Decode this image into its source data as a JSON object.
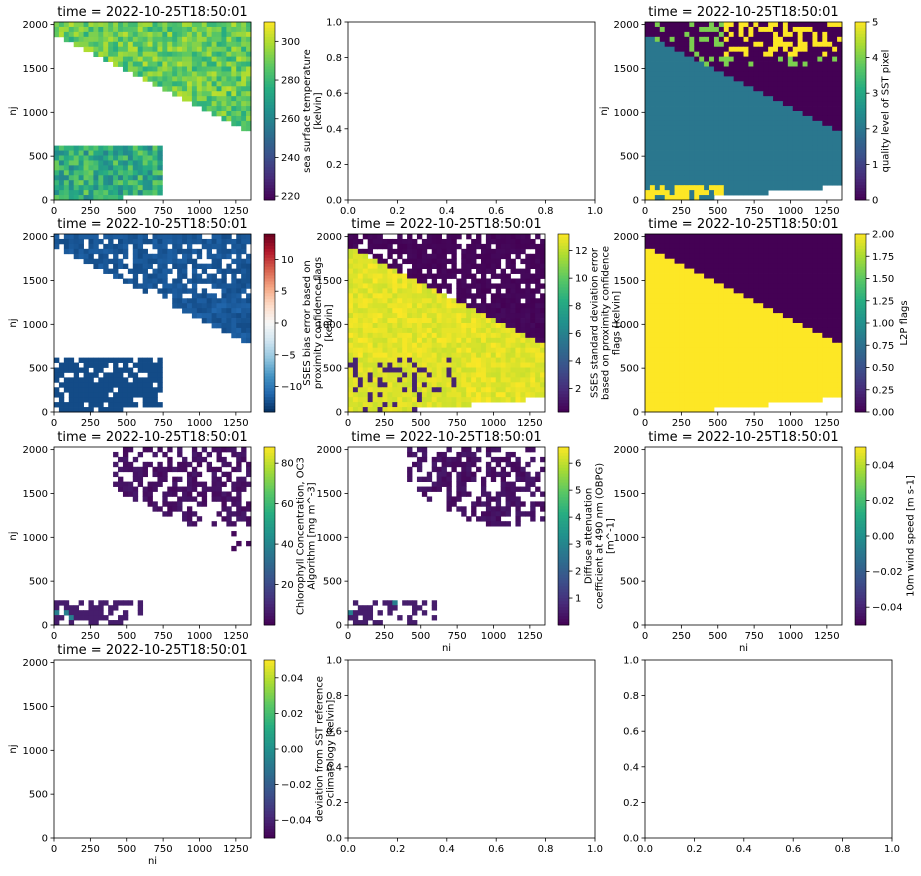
{
  "figure": {
    "background": "#ffffff"
  },
  "chart_data": [
    {
      "type": "heatmap",
      "title": "time = 2022-10-25T18:50:01",
      "xlabel": "",
      "ylabel": "nj",
      "xlim": [
        0,
        1354
      ],
      "ylim": [
        0,
        2030
      ],
      "xticks": [
        0,
        250,
        500,
        750,
        1000,
        1250
      ],
      "yticks": [
        0,
        500,
        1000,
        1500,
        2000
      ],
      "colormap": "viridis",
      "colorbar": {
        "label": [
          "sea surface temperature",
          "[kelvin]"
        ],
        "min": 218,
        "max": 310,
        "ticks": [
          220,
          240,
          260,
          280,
          300
        ]
      }
    },
    {
      "type": "empty",
      "title": "",
      "xlabel": "",
      "ylabel": "",
      "xlim": [
        0,
        1
      ],
      "ylim": [
        0,
        1
      ],
      "xticks": [
        0.0,
        0.2,
        0.4,
        0.6,
        0.8,
        1.0
      ],
      "yticks": [
        0.0,
        0.2,
        0.4,
        0.6,
        0.8,
        1.0
      ]
    },
    {
      "type": "heatmap",
      "title": "time = 2022-10-25T18:50:01",
      "xlabel": "",
      "ylabel": "nj",
      "xlim": [
        0,
        1354
      ],
      "ylim": [
        0,
        2030
      ],
      "xticks": [
        0,
        250,
        500,
        750,
        1000,
        1250
      ],
      "yticks": [
        0,
        500,
        1000,
        1500,
        2000
      ],
      "colormap": "viridis",
      "colorbar": {
        "label": [
          "quality level of SST pixel"
        ],
        "min": 0,
        "max": 5,
        "ticks": [
          0,
          1,
          2,
          3,
          4,
          5
        ]
      }
    },
    {
      "type": "heatmap",
      "title": "time = 2022-10-25T18:50:01",
      "xlabel": "",
      "ylabel": "nj",
      "xlim": [
        0,
        1354
      ],
      "ylim": [
        0,
        2030
      ],
      "xticks": [
        0,
        250,
        500,
        750,
        1000,
        1250
      ],
      "yticks": [
        0,
        500,
        1000,
        1500,
        2000
      ],
      "colormap": "RdBu_r",
      "colorbar": {
        "label": [
          "SSES bias error based on",
          "proximity confidence flags",
          "[kelvin]"
        ],
        "min": -14,
        "max": 14,
        "ticks": [
          -10,
          -5,
          0,
          5,
          10
        ]
      }
    },
    {
      "type": "heatmap",
      "title": "time = 2022-10-25T18:50:01",
      "xlabel": "",
      "ylabel": "",
      "xlim": [
        0,
        1354
      ],
      "ylim": [
        0,
        2030
      ],
      "xticks": [
        0,
        250,
        500,
        750,
        1000,
        1250
      ],
      "yticks": [
        0,
        500,
        1000,
        1500,
        2000
      ],
      "colormap": "viridis",
      "colorbar": {
        "label": [
          "SSES standard deviation error",
          "based on proximity confidence",
          "flags [kelvin]"
        ],
        "min": 0.3,
        "max": 13.2,
        "ticks": [
          2,
          4,
          6,
          8,
          10,
          12
        ]
      }
    },
    {
      "type": "heatmap",
      "title": "time = 2022-10-25T18:50:01",
      "xlabel": "",
      "ylabel": "",
      "xlim": [
        0,
        1354
      ],
      "ylim": [
        0,
        2030
      ],
      "xticks": [
        0,
        250,
        500,
        750,
        1000,
        1250
      ],
      "yticks": [
        0,
        500,
        1000,
        1500,
        2000
      ],
      "colormap": "viridis",
      "colorbar": {
        "label": [
          "L2P flags"
        ],
        "min": 0,
        "max": 2,
        "ticks": [
          0.0,
          0.25,
          0.5,
          0.75,
          1.0,
          1.25,
          1.5,
          1.75,
          2.0
        ]
      }
    },
    {
      "type": "heatmap",
      "title": "time = 2022-10-25T18:50:01",
      "xlabel": "",
      "ylabel": "nj",
      "xlim": [
        0,
        1354
      ],
      "ylim": [
        0,
        2030
      ],
      "xticks": [
        0,
        250,
        500,
        750,
        1000,
        1250
      ],
      "yticks": [
        0,
        500,
        1000,
        1500,
        2000
      ],
      "colormap": "viridis",
      "colorbar": {
        "label": [
          "Chlorophyll Concentration, OC3",
          "Algorithm [mg m^-3]"
        ],
        "min": 0,
        "max": 88,
        "ticks": [
          20,
          40,
          60,
          80
        ]
      }
    },
    {
      "type": "heatmap",
      "title": "time = 2022-10-25T18:50:01",
      "xlabel": "ni",
      "ylabel": "",
      "xlim": [
        0,
        1354
      ],
      "ylim": [
        0,
        2030
      ],
      "xticks": [
        0,
        250,
        500,
        750,
        1000,
        1250
      ],
      "yticks": [
        0,
        500,
        1000,
        1500,
        2000
      ],
      "colormap": "viridis",
      "colorbar": {
        "label": [
          "Diffuse attenuation",
          "coefficient at 490 nm (OBPG)",
          "[m^-1]"
        ],
        "min": 0,
        "max": 6.6,
        "ticks": [
          1,
          2,
          3,
          4,
          5,
          6
        ]
      }
    },
    {
      "type": "heatmap",
      "title": "time = 2022-10-25T18:50:01",
      "xlabel": "ni",
      "ylabel": "",
      "xlim": [
        0,
        1354
      ],
      "ylim": [
        0,
        2030
      ],
      "xticks": [
        0,
        250,
        500,
        750,
        1000,
        1250
      ],
      "yticks": [
        0,
        500,
        1000,
        1500,
        2000
      ],
      "colormap": "viridis",
      "colorbar": {
        "label": [
          "10m wind speed [m s-1]"
        ],
        "min": -0.05,
        "max": 0.05,
        "ticks": [
          -0.04,
          -0.02,
          0.0,
          0.02,
          0.04
        ]
      }
    },
    {
      "type": "heatmap",
      "title": "time = 2022-10-25T18:50:01",
      "xlabel": "ni",
      "ylabel": "nj",
      "xlim": [
        0,
        1354
      ],
      "ylim": [
        0,
        2030
      ],
      "xticks": [
        0,
        250,
        500,
        750,
        1000,
        1250
      ],
      "yticks": [
        0,
        500,
        1000,
        1500,
        2000
      ],
      "colormap": "viridis",
      "colorbar": {
        "label": [
          "deviation from SST reference",
          "climatology [kelvin]"
        ],
        "min": -0.05,
        "max": 0.05,
        "ticks": [
          -0.04,
          -0.02,
          0.0,
          0.02,
          0.04
        ]
      }
    },
    {
      "type": "empty",
      "title": "",
      "xlabel": "",
      "ylabel": "",
      "xlim": [
        0,
        1
      ],
      "ylim": [
        0,
        1
      ],
      "xticks": [
        0.0,
        0.2,
        0.4,
        0.6,
        0.8,
        1.0
      ],
      "yticks": [
        0.0,
        0.2,
        0.4,
        0.6,
        0.8,
        1.0
      ]
    },
    {
      "type": "empty",
      "title": "",
      "xlabel": "",
      "ylabel": "",
      "xlim": [
        0,
        1
      ],
      "ylim": [
        0,
        1
      ],
      "xticks": [
        0.0,
        0.2,
        0.4,
        0.6,
        0.8,
        1.0
      ],
      "yticks": [
        0.0,
        0.2,
        0.4,
        0.6,
        0.8,
        1.0
      ]
    }
  ]
}
